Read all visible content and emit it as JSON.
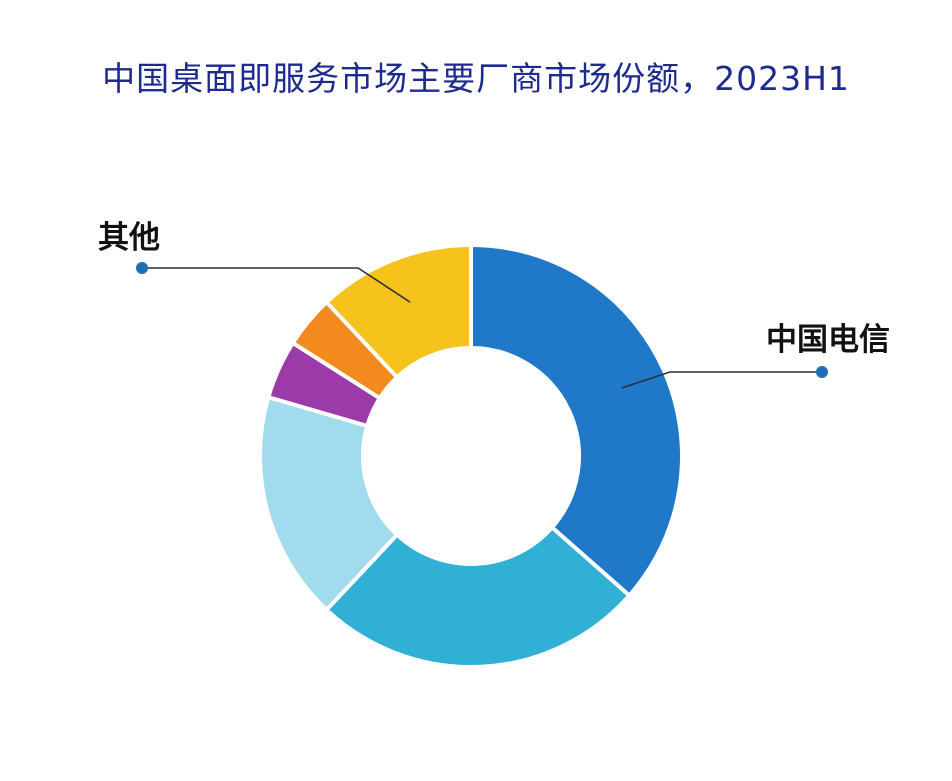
{
  "chart_data": {
    "type": "pie",
    "title": "中国桌面即服务市场主要厂商市场份额，2023H1",
    "donut": true,
    "slices": [
      {
        "label": "中国电信",
        "value": 36.5,
        "color": "#1f78c8"
      },
      {
        "label": "",
        "value": 25.5,
        "color": "#2fb0d4"
      },
      {
        "label": "",
        "value": 17.5,
        "color": "#a3dbee"
      },
      {
        "label": "",
        "value": 4.5,
        "color": "#9b3aa8"
      },
      {
        "label": "",
        "value": 4.0,
        "color": "#f38a1e"
      },
      {
        "label": "其他",
        "value": 12.0,
        "color": "#f6c21c"
      }
    ]
  }
}
